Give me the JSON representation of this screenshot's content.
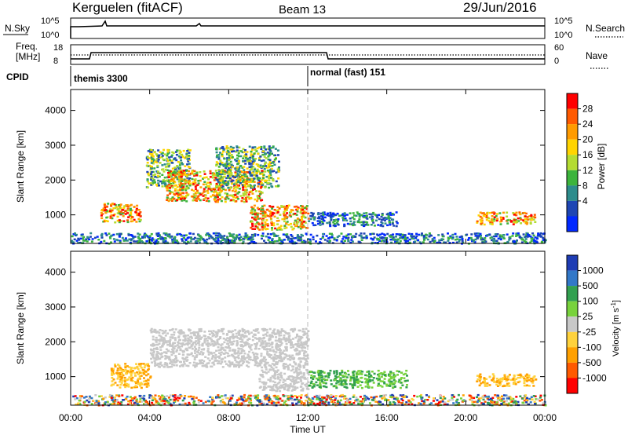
{
  "header": {
    "station": "Kerguelen (fitACF)",
    "beam": "Beam 13",
    "date": "29/Jun/2016"
  },
  "summary_panel": {
    "nsky_label": "N.Sky",
    "nsky_ticks": [
      "10^5",
      "10^0"
    ],
    "nsearch_label": "N.Search",
    "nsearch_ticks": [
      "10^5",
      "10^0"
    ],
    "freq_label_line1": "Freq.",
    "freq_label_line2": "[MHz]",
    "freq_ticks": [
      "18",
      "8"
    ],
    "nave_label": "Nave",
    "nave_ticks": [
      "60",
      "0"
    ],
    "cpid_label": "CPID",
    "cpid_segments": [
      {
        "name": "themis 3300",
        "start_hour": 0
      },
      {
        "name": "normal (fast) 151",
        "start_hour": 12
      }
    ]
  },
  "chart_data": [
    {
      "type": "heatmap",
      "title": "",
      "xlabel": "Time UT",
      "ylabel": "Slant Range [km]",
      "x_ticks": [
        "00:00",
        "04:00",
        "08:00",
        "12:00",
        "16:00",
        "20:00",
        "00:00"
      ],
      "x_tick_hours": [
        0,
        4,
        8,
        12,
        16,
        20,
        24
      ],
      "xlim_hours": [
        0,
        24
      ],
      "y_ticks": [
        1000,
        2000,
        3000,
        4000
      ],
      "ylim": [
        180,
        4600
      ],
      "colorbar": {
        "label": "Power [dB]",
        "tick_labels": [
          "28",
          "24",
          "20",
          "16",
          "12",
          "8",
          "4"
        ],
        "colors": [
          "#ff0000",
          "#ff5a00",
          "#ff9b00",
          "#ffd400",
          "#b4dc32",
          "#3cb43c",
          "#2d8c8c",
          "#1e46b4",
          "#0028ff"
        ]
      },
      "echo_regions": [
        {
          "hours": [
            1.5,
            3.5
          ],
          "range_km": [
            800,
            1350
          ],
          "level": "high"
        },
        {
          "hours": [
            3.8,
            6.0
          ],
          "range_km": [
            1800,
            2900
          ],
          "level": "medium"
        },
        {
          "hours": [
            4.8,
            9.7
          ],
          "range_km": [
            1400,
            2300
          ],
          "level": "high"
        },
        {
          "hours": [
            7.3,
            10.5
          ],
          "range_km": [
            1800,
            3000
          ],
          "level": "medium"
        },
        {
          "hours": [
            9.0,
            12.0
          ],
          "range_km": [
            600,
            1300
          ],
          "level": "high"
        },
        {
          "hours": [
            12.0,
            16.5
          ],
          "range_km": [
            700,
            1100
          ],
          "level": "low"
        },
        {
          "hours": [
            20.5,
            23.5
          ],
          "range_km": [
            750,
            1100
          ],
          "level": "high"
        },
        {
          "hours": [
            0,
            24
          ],
          "range_km": [
            200,
            500
          ],
          "level": "low"
        }
      ]
    },
    {
      "type": "heatmap",
      "title": "",
      "xlabel": "Time UT",
      "ylabel": "Slant Range [km]",
      "x_ticks": [
        "00:00",
        "04:00",
        "08:00",
        "12:00",
        "16:00",
        "20:00",
        "00:00"
      ],
      "x_tick_hours": [
        0,
        4,
        8,
        12,
        16,
        20,
        24
      ],
      "xlim_hours": [
        0,
        24
      ],
      "y_ticks": [
        1000,
        2000,
        3000,
        4000
      ],
      "ylim": [
        180,
        4600
      ],
      "colorbar": {
        "label": "Velocity [m s^-1]",
        "tick_labels": [
          "1000",
          "500",
          "100",
          "25",
          "-25",
          "-100",
          "-500",
          "-1000"
        ],
        "colors": [
          "#1e3cb4",
          "#3278c8",
          "#32a050",
          "#78d23c",
          "#c8c8c8",
          "#ffd23c",
          "#ffa000",
          "#ff5a00",
          "#ff0000"
        ]
      },
      "echo_regions": [
        {
          "hours": [
            2.0,
            4.0
          ],
          "range_km": [
            700,
            1400
          ],
          "velocity": "negative"
        },
        {
          "hours": [
            4.0,
            12.0
          ],
          "range_km": [
            1300,
            2400
          ],
          "velocity": "ground_scatter"
        },
        {
          "hours": [
            9.5,
            12.0
          ],
          "range_km": [
            600,
            1300
          ],
          "velocity": "ground_scatter"
        },
        {
          "hours": [
            12.0,
            17.0
          ],
          "range_km": [
            700,
            1200
          ],
          "velocity": "positive"
        },
        {
          "hours": [
            20.5,
            23.5
          ],
          "range_km": [
            750,
            1100
          ],
          "velocity": "negative"
        },
        {
          "hours": [
            0,
            24
          ],
          "range_km": [
            200,
            500
          ],
          "velocity": "mixed"
        }
      ]
    }
  ]
}
